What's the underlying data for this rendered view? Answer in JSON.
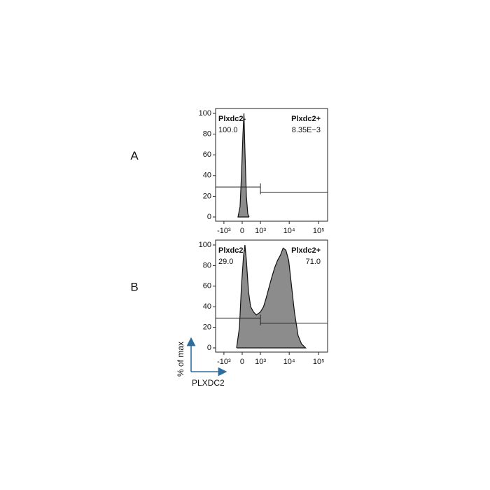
{
  "axis_titles": {
    "x": "PLXDC2",
    "y": "% of max"
  },
  "chart_data": [
    {
      "type": "area",
      "panel": "A",
      "xscale": "asinh",
      "x": [
        -170,
        -85,
        -30,
        30,
        70,
        115,
        170,
        230,
        290
      ],
      "values": [
        0,
        10,
        40,
        80,
        100,
        60,
        20,
        3,
        0
      ],
      "color": "#8c8c8c",
      "xlim": [
        -2000,
        200000
      ],
      "xticks": [
        {
          "value": -1000,
          "label": "-10³"
        },
        0,
        {
          "value": 1000,
          "label": "10³"
        },
        {
          "value": 10000,
          "label": "10⁴"
        },
        {
          "value": 100000,
          "label": "10⁵"
        }
      ],
      "ylim": [
        0,
        100
      ],
      "yticks": [
        0,
        20,
        40,
        60,
        80,
        100
      ],
      "gates": {
        "split": 1000,
        "names": [
          "Plxdc2-",
          "Plxdc2+"
        ],
        "values": [
          100.0,
          0.00835
        ],
        "value_labels": [
          "100.0",
          "8.35E−3"
        ]
      }
    },
    {
      "type": "area",
      "panel": "B",
      "xscale": "asinh",
      "x": [
        -230,
        -110,
        -30,
        55,
        110,
        170,
        260,
        360,
        510,
        680,
        1000,
        1300,
        1600,
        2000,
        2500,
        3200,
        4000,
        5000,
        6200,
        7700,
        9600,
        12000,
        15000,
        20000,
        26000,
        36000
      ],
      "values": [
        0,
        20,
        60,
        90,
        100,
        85,
        55,
        40,
        35,
        32,
        35,
        40,
        48,
        58,
        68,
        78,
        85,
        90,
        97,
        95,
        85,
        60,
        35,
        12,
        4,
        0
      ],
      "color": "#8c8c8c",
      "xlim": [
        -2000,
        200000
      ],
      "xticks": [
        {
          "value": -1000,
          "label": "-10³"
        },
        0,
        {
          "value": 1000,
          "label": "10³"
        },
        {
          "value": 10000,
          "label": "10⁴"
        },
        {
          "value": 100000,
          "label": "10⁵"
        }
      ],
      "ylim": [
        0,
        100
      ],
      "yticks": [
        0,
        20,
        40,
        60,
        80,
        100
      ],
      "gates": {
        "split": 1000,
        "names": [
          "Plxdc2-",
          "Plxdc2+"
        ],
        "values": [
          29.0,
          71.0
        ],
        "value_labels": [
          "29.0",
          "71.0"
        ]
      }
    }
  ]
}
